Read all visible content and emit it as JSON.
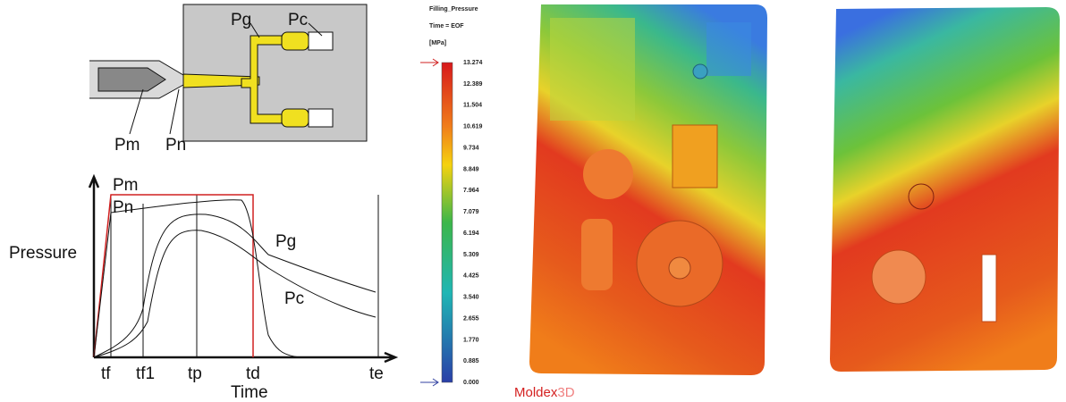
{
  "mold_diagram": {
    "labels": [
      "Pg",
      "Pc",
      "Pm",
      "Pn"
    ]
  },
  "pressure_plot": {
    "y_label": "Pressure",
    "x_label": "Time",
    "curve_labels": [
      "Pm",
      "Pn",
      "Pg",
      "Pc"
    ],
    "time_marks": [
      "tf",
      "tf1",
      "tp",
      "td",
      "te"
    ]
  },
  "colorbar": {
    "title": "Filling_Pressure",
    "time": "Time = EOF",
    "unit": "[MPa]",
    "ticks": [
      "13.274",
      "12.389",
      "11.504",
      "10.619",
      "9.734",
      "8.849",
      "7.964",
      "7.079",
      "6.194",
      "5.309",
      "4.425",
      "3.540",
      "2.655",
      "1.770",
      "0.885",
      "0.000"
    ]
  },
  "brand": {
    "name": "Moldex",
    "suffix": "3D"
  }
}
